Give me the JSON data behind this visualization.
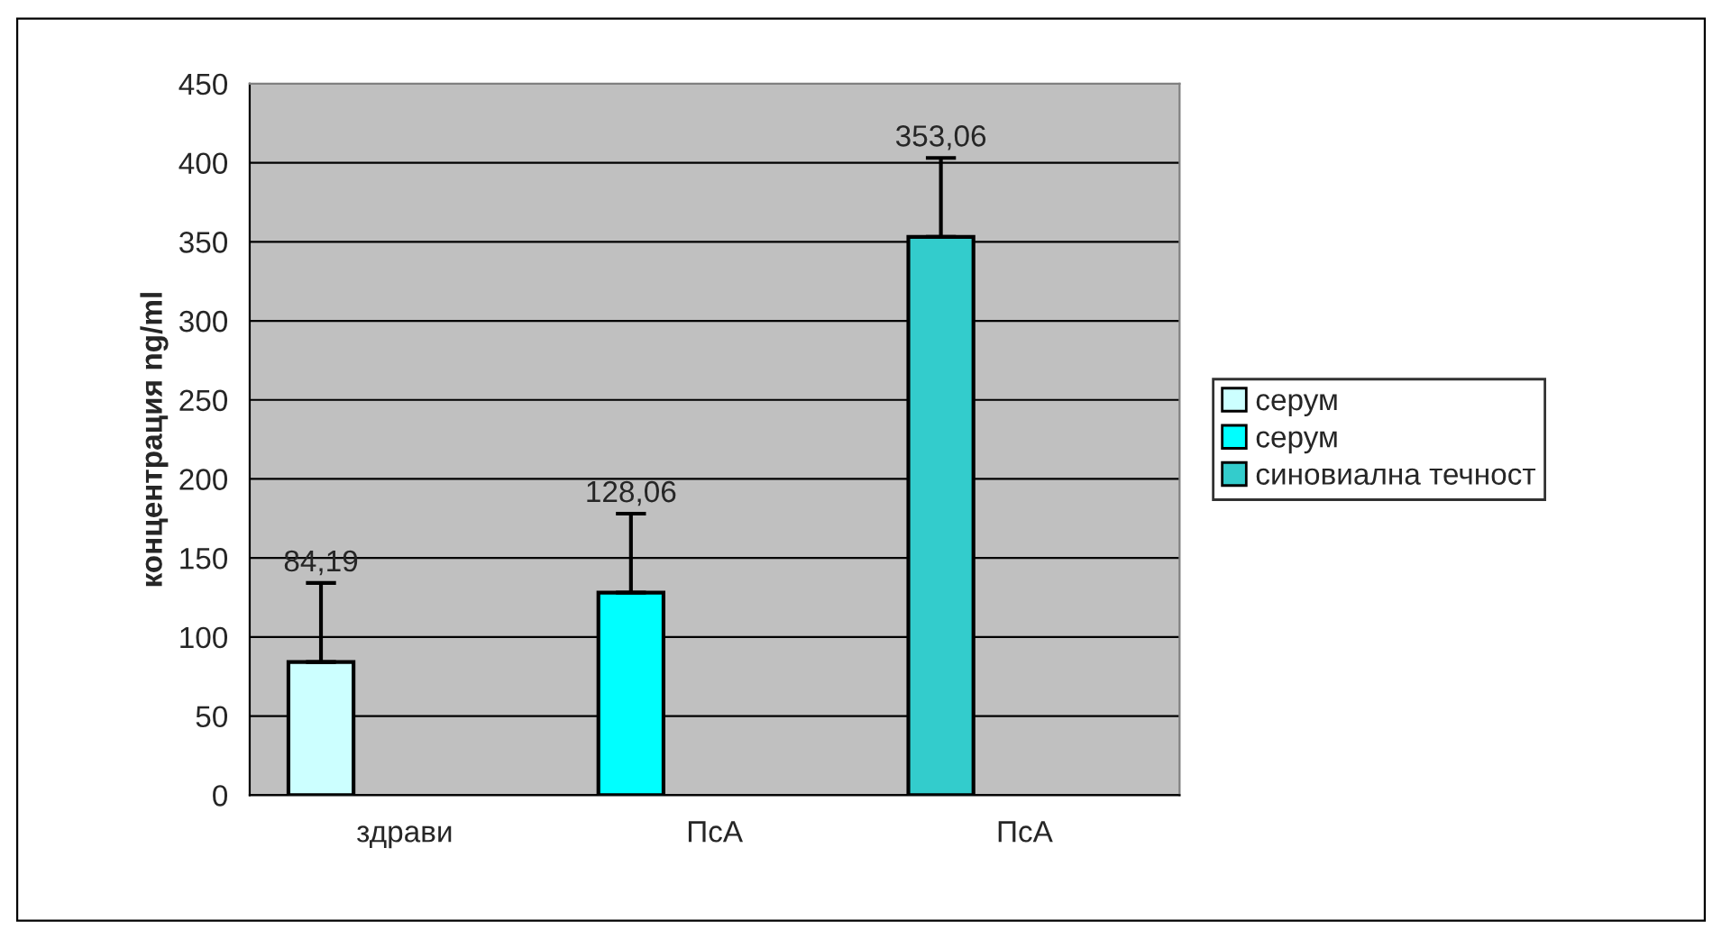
{
  "chart_data": {
    "type": "bar",
    "ylabel": "концентрация ng/ml",
    "categories": [
      "здрави",
      "ПсА",
      "ПсА"
    ],
    "series": [
      {
        "name": "серум",
        "color": "#ccffff",
        "values": [
          84.19,
          null,
          null
        ],
        "errors": [
          50,
          null,
          null
        ],
        "value_labels": [
          "84,19",
          null,
          null
        ]
      },
      {
        "name": "серум",
        "color": "#00ffff",
        "values": [
          null,
          128.06,
          null
        ],
        "errors": [
          null,
          50,
          null
        ],
        "value_labels": [
          null,
          "128,06",
          null
        ]
      },
      {
        "name": "синовиална течност",
        "color": "#33cccc",
        "values": [
          null,
          null,
          353.06
        ],
        "errors": [
          null,
          null,
          50
        ],
        "value_labels": [
          null,
          null,
          "353,06"
        ]
      }
    ],
    "ylim": [
      0,
      450
    ],
    "yticks": [
      0,
      50,
      100,
      150,
      200,
      250,
      300,
      350,
      400,
      450
    ],
    "grid": "y",
    "legend": "right"
  }
}
